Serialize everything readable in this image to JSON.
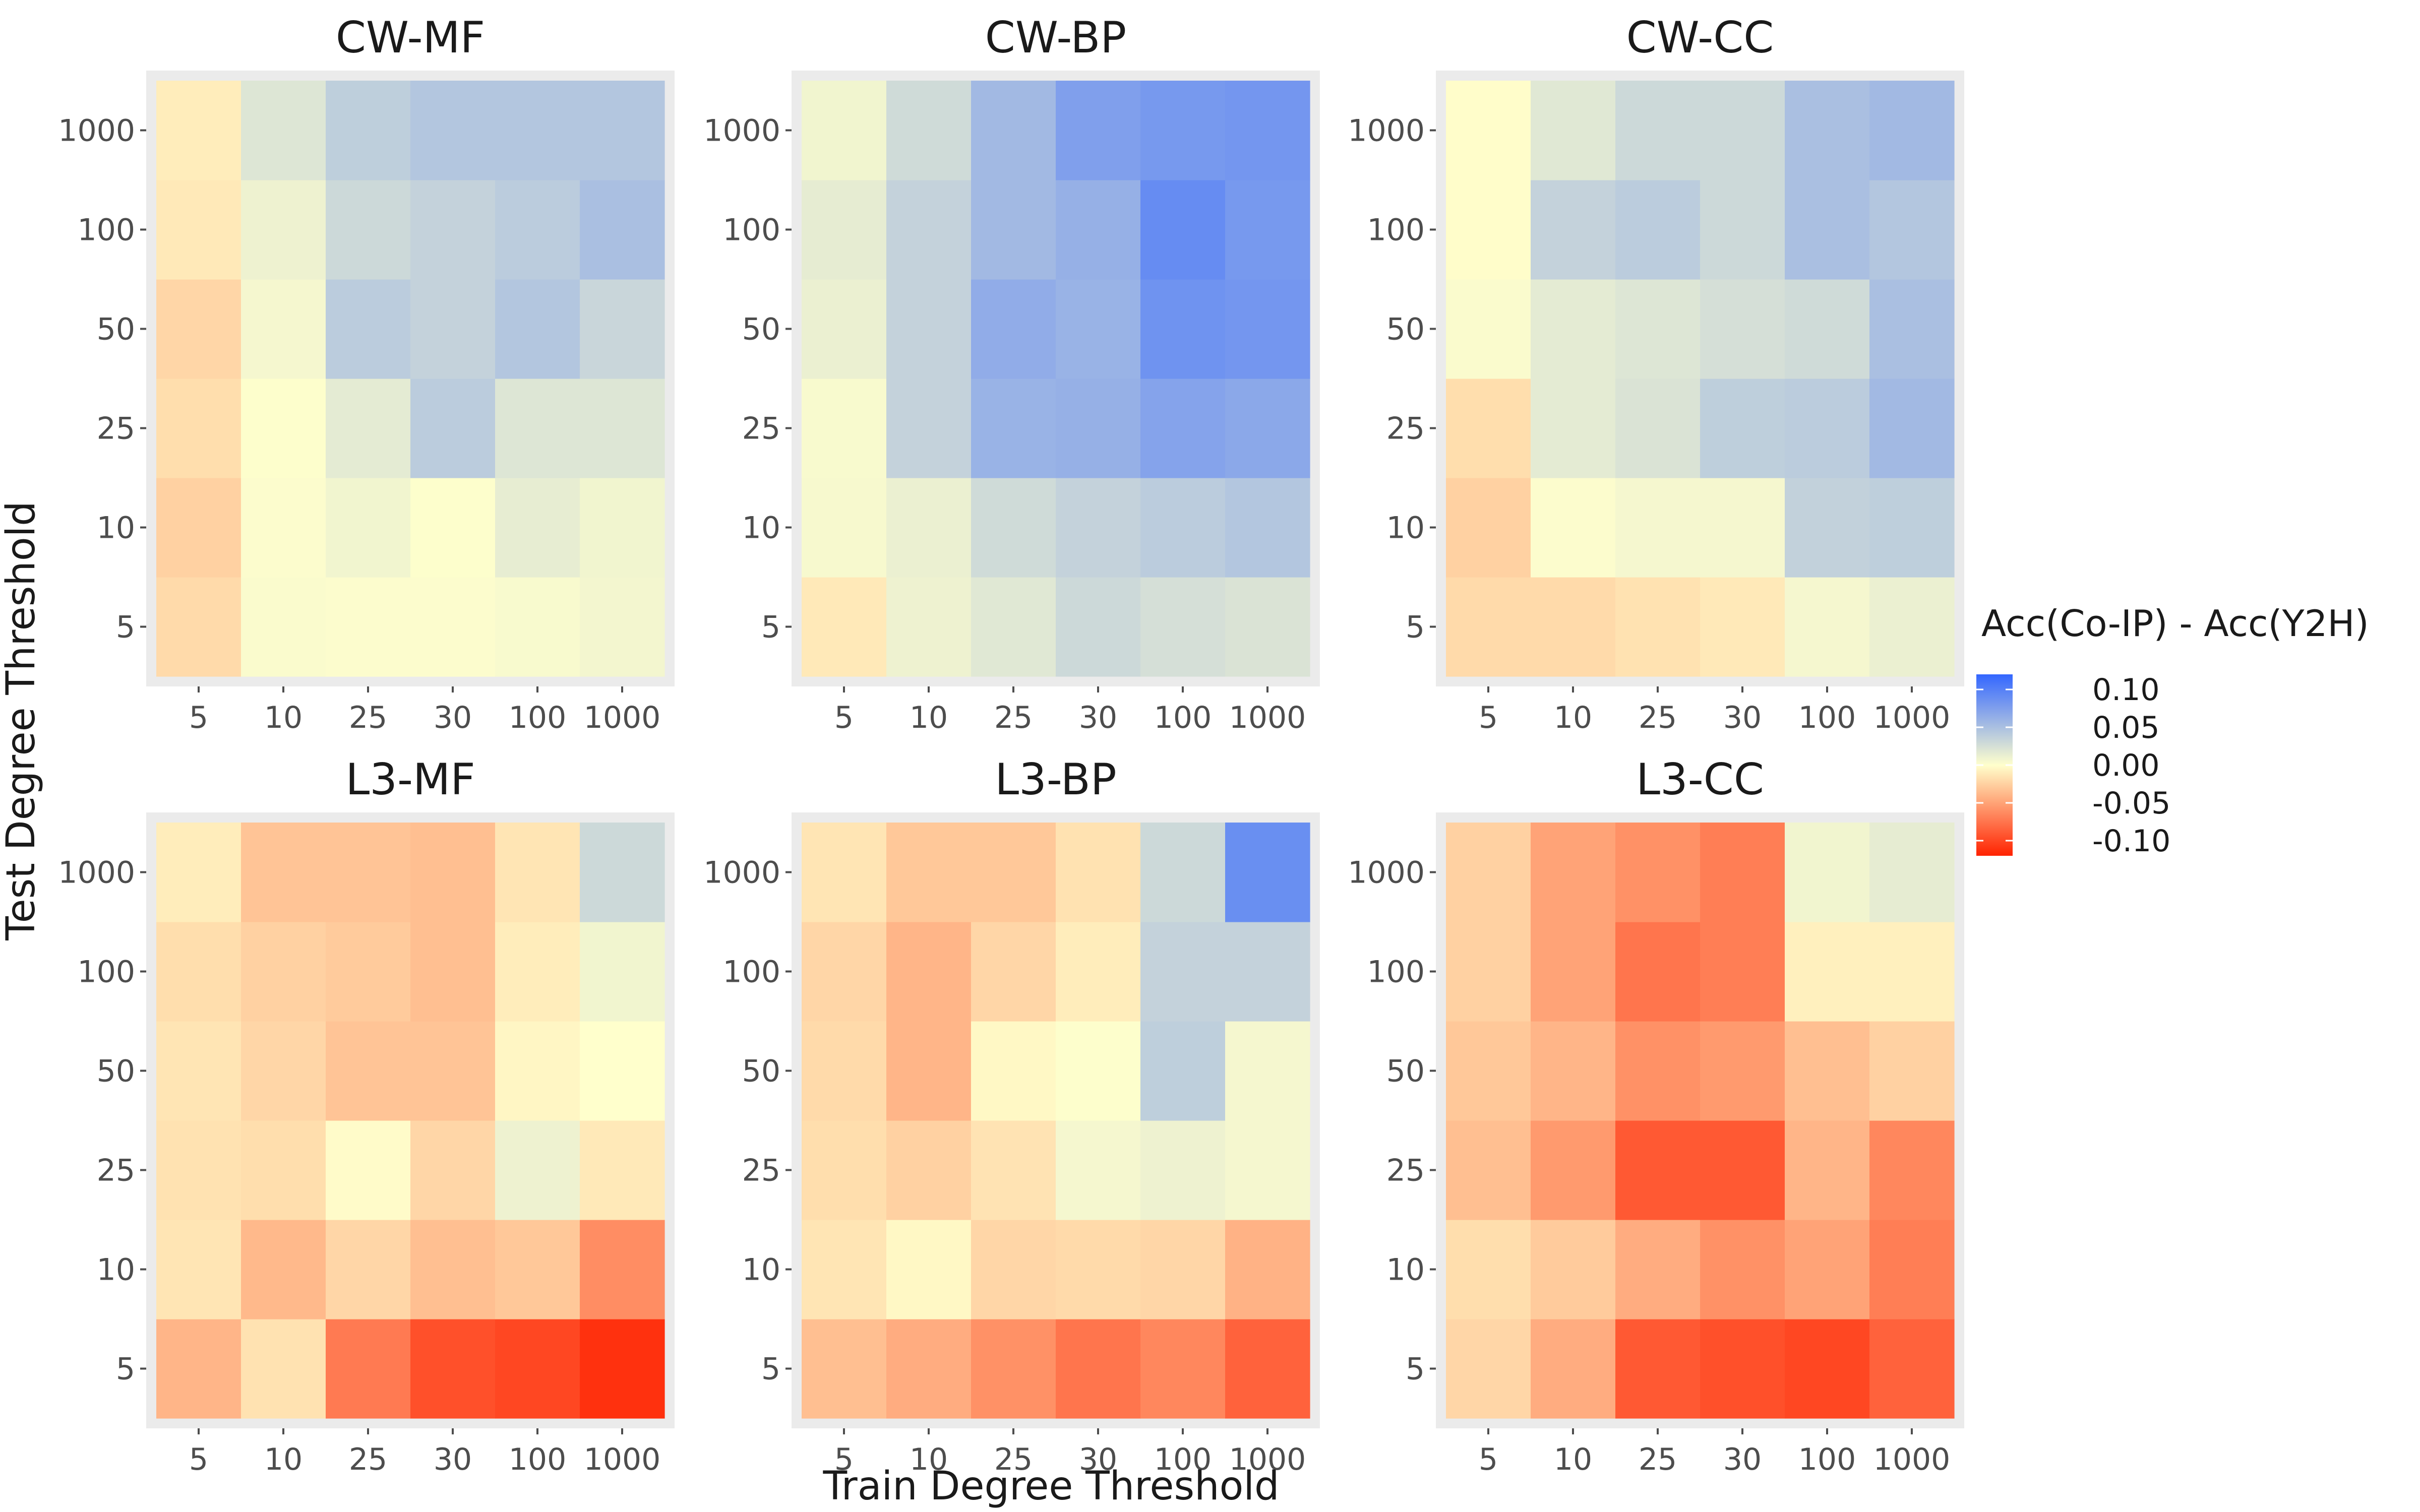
{
  "chart_data": {
    "type": "heatmap",
    "xlabel": "Train Degree Threshold",
    "ylabel": "Test Degree Threshold",
    "x_categories": [
      "5",
      "10",
      "25",
      "30",
      "100",
      "1000"
    ],
    "y_categories": [
      "5",
      "10",
      "25",
      "50",
      "100",
      "1000"
    ],
    "legend": {
      "title": "Acc(Co-IP) - Acc(Y2H)",
      "placement": "right",
      "ticks": [
        0.1,
        0.05,
        0.0,
        -0.05,
        -0.1
      ],
      "tick_labels": [
        "0.10",
        "0.05",
        "0.00",
        "-0.05",
        "-0.10"
      ],
      "range": [
        -0.12,
        0.12
      ],
      "color_high": "#3366ff",
      "color_mid": "#ffffcc",
      "color_low": "#ff2200"
    },
    "panels": [
      {
        "title": "CW-MF",
        "values": [
          [
            -0.02,
            0.003,
            0.002,
            0.002,
            0.004,
            0.007
          ],
          [
            -0.025,
            0.002,
            0.008,
            0.001,
            0.014,
            0.008
          ],
          [
            -0.018,
            0.001,
            0.016,
            0.04,
            0.02,
            0.02
          ],
          [
            -0.022,
            0.006,
            0.04,
            0.035,
            0.045,
            0.032
          ],
          [
            -0.012,
            0.01,
            0.03,
            0.035,
            0.04,
            0.05
          ],
          [
            -0.01,
            0.02,
            0.038,
            0.045,
            0.045,
            0.045
          ]
        ]
      },
      {
        "title": "CW-BP",
        "values": [
          [
            -0.012,
            0.01,
            0.018,
            0.03,
            0.025,
            0.022
          ],
          [
            0.005,
            0.012,
            0.028,
            0.035,
            0.04,
            0.045
          ],
          [
            0.004,
            0.035,
            0.06,
            0.062,
            0.072,
            0.068
          ],
          [
            0.012,
            0.035,
            0.065,
            0.06,
            0.085,
            0.082
          ],
          [
            0.015,
            0.035,
            0.055,
            0.062,
            0.09,
            0.08
          ],
          [
            0.008,
            0.028,
            0.055,
            0.075,
            0.08,
            0.082
          ]
        ]
      },
      {
        "title": "CW-CC",
        "values": [
          [
            -0.02,
            -0.02,
            -0.016,
            -0.012,
            0.006,
            0.012
          ],
          [
            -0.025,
            0.002,
            0.006,
            0.006,
            0.036,
            0.038
          ],
          [
            -0.018,
            0.016,
            0.022,
            0.038,
            0.04,
            0.055
          ],
          [
            0.003,
            0.016,
            0.02,
            0.025,
            0.028,
            0.05
          ],
          [
            -0.001,
            0.035,
            0.04,
            0.03,
            0.05,
            0.045
          ],
          [
            -0.001,
            0.018,
            0.03,
            0.03,
            0.05,
            0.055
          ]
        ]
      },
      {
        "title": "L3-MF",
        "values": [
          [
            -0.04,
            -0.016,
            -0.072,
            -0.095,
            -0.1,
            -0.112
          ],
          [
            -0.014,
            -0.038,
            -0.022,
            -0.035,
            -0.03,
            -0.062
          ],
          [
            -0.016,
            -0.018,
            -0.002,
            -0.022,
            0.01,
            -0.012
          ],
          [
            -0.014,
            -0.022,
            -0.032,
            -0.032,
            -0.005,
            0.0
          ],
          [
            -0.018,
            -0.025,
            -0.028,
            -0.035,
            -0.01,
            0.008
          ],
          [
            -0.01,
            -0.032,
            -0.032,
            -0.035,
            -0.014,
            0.03
          ]
        ]
      },
      {
        "title": "L3-BP",
        "values": [
          [
            -0.035,
            -0.045,
            -0.06,
            -0.075,
            -0.065,
            -0.085
          ],
          [
            -0.014,
            -0.004,
            -0.022,
            -0.02,
            -0.022,
            -0.042
          ],
          [
            -0.018,
            -0.025,
            -0.015,
            0.006,
            0.01,
            0.006
          ],
          [
            -0.02,
            -0.04,
            -0.004,
            0.001,
            0.038,
            0.006
          ],
          [
            -0.022,
            -0.04,
            -0.022,
            -0.01,
            0.035,
            0.035
          ],
          [
            -0.014,
            -0.03,
            -0.03,
            -0.016,
            0.03,
            0.088
          ]
        ]
      },
      {
        "title": "L3-CC",
        "values": [
          [
            -0.022,
            -0.045,
            -0.09,
            -0.095,
            -0.1,
            -0.085
          ],
          [
            -0.018,
            -0.028,
            -0.045,
            -0.06,
            -0.05,
            -0.07
          ],
          [
            -0.035,
            -0.055,
            -0.09,
            -0.09,
            -0.04,
            -0.065
          ],
          [
            -0.03,
            -0.04,
            -0.06,
            -0.055,
            -0.035,
            -0.025
          ],
          [
            -0.025,
            -0.05,
            -0.075,
            -0.07,
            -0.008,
            -0.008
          ],
          [
            -0.025,
            -0.05,
            -0.06,
            -0.07,
            0.008,
            0.015
          ]
        ]
      }
    ]
  }
}
